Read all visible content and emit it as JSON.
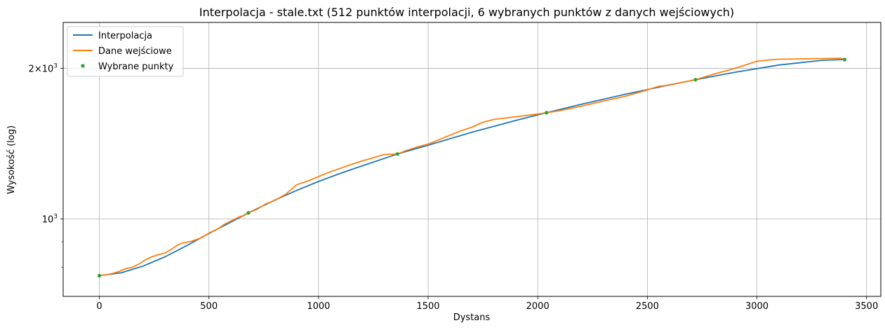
{
  "chart_data": {
    "type": "line",
    "title": "Interpolacja - stale.txt (512 punktów interpolacji, 6 wybranych punktów z danych wejściowych)",
    "xlabel": "Dystans",
    "ylabel": "Wysokość (log)",
    "xlim": [
      -165,
      3565
    ],
    "ylim": [
      700,
      2470
    ],
    "yscale": "log",
    "grid": true,
    "legend": "top-left",
    "x_ticks": [
      0,
      500,
      1000,
      1500,
      2000,
      2500,
      3000,
      3500
    ],
    "x_tick_labels": [
      "0",
      "500",
      "1000",
      "1500",
      "2000",
      "2500",
      "3000",
      "3500"
    ],
    "y_major_ticks": [
      1000,
      2000
    ],
    "y_tick_labels": {
      "base": "2",
      "sup": "3",
      "plain": "10",
      "times": "×"
    },
    "y_minor_ticks": [
      800,
      900
    ],
    "series": [
      {
        "name": "Interpolacja",
        "color": "#1f77b4",
        "style": "line",
        "x": [
          0,
          100,
          200,
          300,
          400,
          500,
          600,
          680,
          800,
          900,
          1000,
          1100,
          1200,
          1360,
          1500,
          1700,
          1900,
          2040,
          2200,
          2400,
          2600,
          2720,
          2900,
          3100,
          3300,
          3400
        ],
        "y": [
          770,
          780,
          805,
          840,
          885,
          935,
          985,
          1028,
          1090,
          1140,
          1188,
          1233,
          1277,
          1348,
          1404,
          1490,
          1573,
          1630,
          1695,
          1775,
          1852,
          1898,
          1964,
          2030,
          2075,
          2082
        ]
      },
      {
        "name": "Dane wejściowe",
        "color": "#ff7f0e",
        "style": "line",
        "x": [
          0,
          30,
          60,
          90,
          120,
          150,
          180,
          210,
          240,
          270,
          300,
          330,
          360,
          380,
          420,
          470,
          500,
          540,
          570,
          600,
          640,
          660,
          680,
          720,
          760,
          800,
          850,
          900,
          950,
          1000,
          1050,
          1100,
          1150,
          1200,
          1250,
          1300,
          1360,
          1400,
          1450,
          1500,
          1550,
          1600,
          1650,
          1700,
          1750,
          1800,
          1900,
          2000,
          2040,
          2100,
          2200,
          2300,
          2400,
          2500,
          2550,
          2600,
          2650,
          2720,
          2800,
          2900,
          3000,
          3050,
          3100,
          3200,
          3300,
          3380,
          3400
        ],
        "y": [
          770,
          773,
          778,
          785,
          795,
          800,
          812,
          828,
          840,
          848,
          855,
          870,
          888,
          895,
          902,
          918,
          937,
          955,
          975,
          990,
          1010,
          1015,
          1028,
          1045,
          1072,
          1088,
          1120,
          1170,
          1190,
          1215,
          1240,
          1262,
          1285,
          1306,
          1325,
          1345,
          1348,
          1370,
          1392,
          1410,
          1440,
          1470,
          1500,
          1525,
          1560,
          1580,
          1600,
          1620,
          1630,
          1645,
          1680,
          1720,
          1758,
          1810,
          1840,
          1850,
          1870,
          1898,
          1945,
          2000,
          2065,
          2078,
          2085,
          2088,
          2092,
          2095,
          2082
        ]
      },
      {
        "name": "Wybrane punkty",
        "color": "#2ca02c",
        "style": "marker",
        "x": [
          0,
          680,
          1360,
          2040,
          2720,
          3400
        ],
        "y": [
          770,
          1028,
          1348,
          1630,
          1898,
          2082
        ]
      }
    ]
  }
}
